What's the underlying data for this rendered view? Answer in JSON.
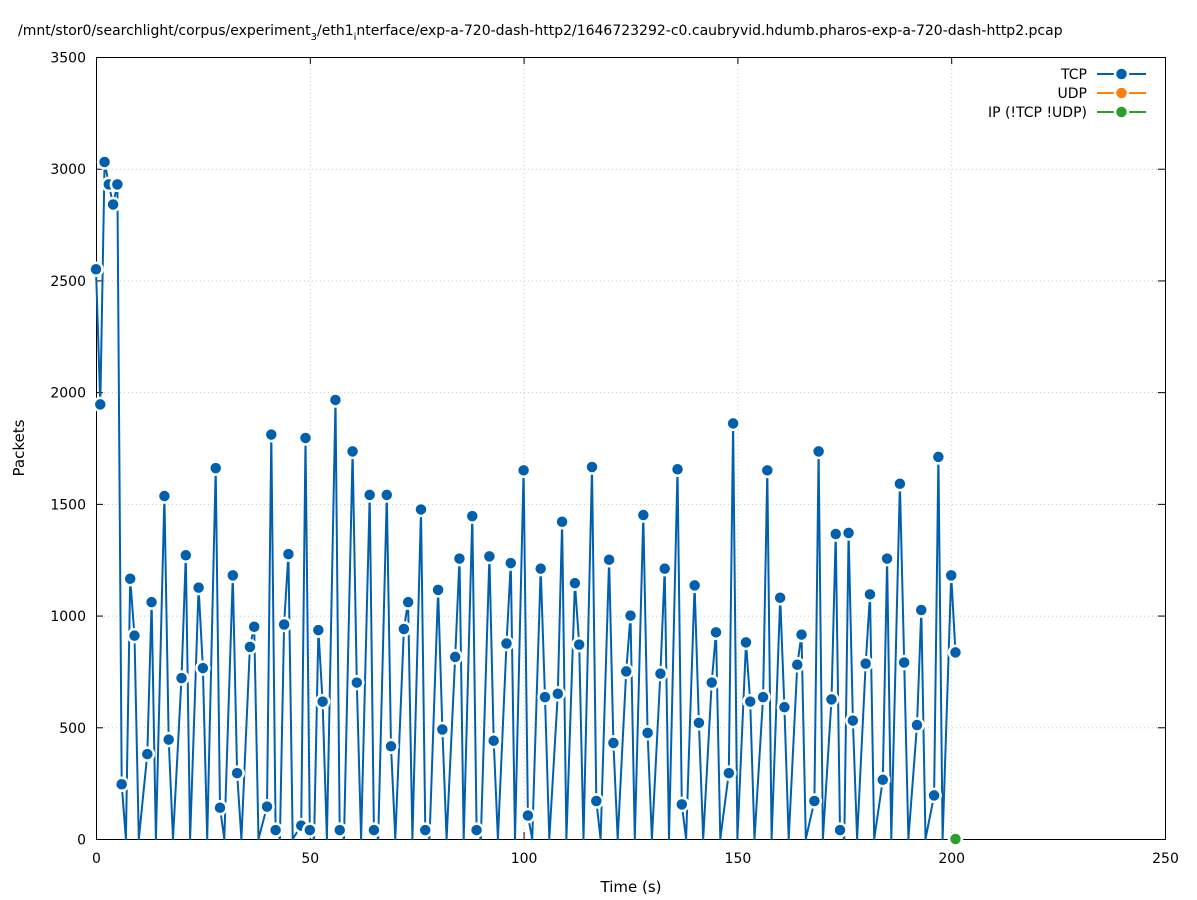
{
  "chart_data": {
    "type": "line",
    "title": "/mnt/stor0/searchlight/corpus/experiment_3/eth1_interface/exp-a-720-dash-http2/1646723292-c0.caubryvid.hdumb.pharos-exp-a-720-dash-http2.pcap",
    "title_parts": {
      "a": "/mnt/stor0/searchlight/corpus/experiment",
      "sub1": "3",
      "b": "/eth1",
      "sub2": "i",
      "c": "nterface/exp-a-720-dash-http2/1646723292-c0.caubryvid.hdumb.pharos-exp-a-720-dash-http2.pcap"
    },
    "xlabel": "Time (s)",
    "ylabel": "Packets",
    "xlim": [
      0,
      250
    ],
    "ylim": [
      0,
      3500
    ],
    "xticks": [
      "0",
      "50",
      "100",
      "150",
      "200",
      "250"
    ],
    "yticks": [
      "0",
      "500",
      "1000",
      "1500",
      "2000",
      "2500",
      "3000",
      "3500"
    ],
    "grid": true,
    "legend_position": "top-right",
    "series": [
      {
        "name": "TCP",
        "color": "#0060ad",
        "points": [
          [
            0,
            2550
          ],
          [
            1,
            1945
          ],
          [
            2,
            3030
          ],
          [
            3,
            2930
          ],
          [
            4,
            2840
          ],
          [
            5,
            2930
          ],
          [
            6,
            245
          ],
          [
            7,
            0
          ],
          [
            8,
            1165
          ],
          [
            9,
            910
          ],
          [
            10,
            0
          ],
          [
            12,
            380
          ],
          [
            13,
            1060
          ],
          [
            14,
            0
          ],
          [
            16,
            1535
          ],
          [
            17,
            445
          ],
          [
            18,
            0
          ],
          [
            20,
            720
          ],
          [
            21,
            1270
          ],
          [
            22,
            0
          ],
          [
            24,
            1125
          ],
          [
            25,
            765
          ],
          [
            26,
            0
          ],
          [
            28,
            1660
          ],
          [
            29,
            140
          ],
          [
            30,
            0
          ],
          [
            32,
            1180
          ],
          [
            33,
            295
          ],
          [
            34,
            0
          ],
          [
            36,
            860
          ],
          [
            37,
            950
          ],
          [
            38,
            0
          ],
          [
            40,
            145
          ],
          [
            41,
            1810
          ],
          [
            42,
            40
          ],
          [
            43,
            0
          ],
          [
            44,
            960
          ],
          [
            45,
            1275
          ],
          [
            46,
            0
          ],
          [
            48,
            60
          ],
          [
            49,
            1795
          ],
          [
            50,
            40
          ],
          [
            51,
            0
          ],
          [
            52,
            935
          ],
          [
            53,
            615
          ],
          [
            54,
            0
          ],
          [
            56,
            1965
          ],
          [
            57,
            40
          ],
          [
            58,
            0
          ],
          [
            60,
            1735
          ],
          [
            61,
            700
          ],
          [
            62,
            0
          ],
          [
            64,
            1540
          ],
          [
            65,
            40
          ],
          [
            66,
            0
          ],
          [
            68,
            1540
          ],
          [
            69,
            415
          ],
          [
            70,
            0
          ],
          [
            72,
            940
          ],
          [
            73,
            1060
          ],
          [
            74,
            0
          ],
          [
            76,
            1475
          ],
          [
            77,
            40
          ],
          [
            78,
            0
          ],
          [
            80,
            1115
          ],
          [
            81,
            490
          ],
          [
            82,
            0
          ],
          [
            84,
            815
          ],
          [
            85,
            1255
          ],
          [
            86,
            0
          ],
          [
            88,
            1445
          ],
          [
            89,
            40
          ],
          [
            90,
            0
          ],
          [
            92,
            1265
          ],
          [
            93,
            440
          ],
          [
            94,
            0
          ],
          [
            96,
            875
          ],
          [
            97,
            1235
          ],
          [
            98,
            0
          ],
          [
            100,
            1650
          ],
          [
            101,
            105
          ],
          [
            102,
            0
          ],
          [
            104,
            1210
          ],
          [
            105,
            635
          ],
          [
            106,
            0
          ],
          [
            108,
            650
          ],
          [
            109,
            1420
          ],
          [
            110,
            0
          ],
          [
            112,
            1145
          ],
          [
            113,
            870
          ],
          [
            114,
            0
          ],
          [
            116,
            1665
          ],
          [
            117,
            170
          ],
          [
            118,
            0
          ],
          [
            120,
            1250
          ],
          [
            121,
            430
          ],
          [
            122,
            0
          ],
          [
            124,
            750
          ],
          [
            125,
            1000
          ],
          [
            126,
            0
          ],
          [
            128,
            1450
          ],
          [
            129,
            475
          ],
          [
            130,
            0
          ],
          [
            132,
            740
          ],
          [
            133,
            1210
          ],
          [
            134,
            0
          ],
          [
            136,
            1655
          ],
          [
            137,
            155
          ],
          [
            138,
            0
          ],
          [
            140,
            1135
          ],
          [
            141,
            520
          ],
          [
            142,
            0
          ],
          [
            144,
            700
          ],
          [
            145,
            925
          ],
          [
            146,
            0
          ],
          [
            148,
            295
          ],
          [
            149,
            1860
          ],
          [
            150,
            0
          ],
          [
            152,
            880
          ],
          [
            153,
            615
          ],
          [
            154,
            0
          ],
          [
            156,
            635
          ],
          [
            157,
            1650
          ],
          [
            158,
            0
          ],
          [
            160,
            1080
          ],
          [
            161,
            590
          ],
          [
            162,
            0
          ],
          [
            164,
            780
          ],
          [
            165,
            915
          ],
          [
            166,
            0
          ],
          [
            168,
            170
          ],
          [
            169,
            1735
          ],
          [
            170,
            0
          ],
          [
            172,
            625
          ],
          [
            173,
            1365
          ],
          [
            174,
            40
          ],
          [
            175,
            0
          ],
          [
            176,
            1370
          ],
          [
            177,
            530
          ],
          [
            178,
            0
          ],
          [
            180,
            785
          ],
          [
            181,
            1095
          ],
          [
            182,
            0
          ],
          [
            184,
            265
          ],
          [
            185,
            1255
          ],
          [
            186,
            0
          ],
          [
            188,
            1590
          ],
          [
            189,
            790
          ],
          [
            190,
            0
          ],
          [
            192,
            510
          ],
          [
            193,
            1025
          ],
          [
            194,
            0
          ],
          [
            196,
            195
          ],
          [
            197,
            1710
          ],
          [
            198,
            0
          ],
          [
            200,
            1180
          ],
          [
            201,
            835
          ]
        ],
        "marker_x": [
          0,
          1,
          2,
          3,
          4,
          5,
          6,
          8,
          9,
          12,
          13,
          16,
          17,
          20,
          21,
          24,
          25,
          28,
          29,
          32,
          33,
          36,
          37,
          40,
          41,
          42,
          44,
          45,
          48,
          49,
          50,
          52,
          53,
          56,
          57,
          60,
          61,
          64,
          65,
          68,
          69,
          72,
          73,
          76,
          77,
          80,
          81,
          84,
          85,
          88,
          89,
          92,
          93,
          96,
          97,
          100,
          101,
          104,
          105,
          108,
          109,
          112,
          113,
          116,
          117,
          120,
          121,
          124,
          125,
          128,
          129,
          132,
          133,
          136,
          137,
          140,
          141,
          144,
          145,
          148,
          149,
          152,
          153,
          156,
          157,
          160,
          161,
          164,
          165,
          168,
          169,
          172,
          173,
          174,
          176,
          177,
          180,
          181,
          184,
          185,
          188,
          189,
          192,
          193,
          196,
          197,
          200,
          201
        ]
      },
      {
        "name": "UDP",
        "color": "#ff7f0e",
        "points": []
      },
      {
        "name": "IP (!TCP  !UDP)",
        "color": "#2ca02c",
        "points": [
          [
            201,
            0
          ]
        ]
      }
    ]
  }
}
